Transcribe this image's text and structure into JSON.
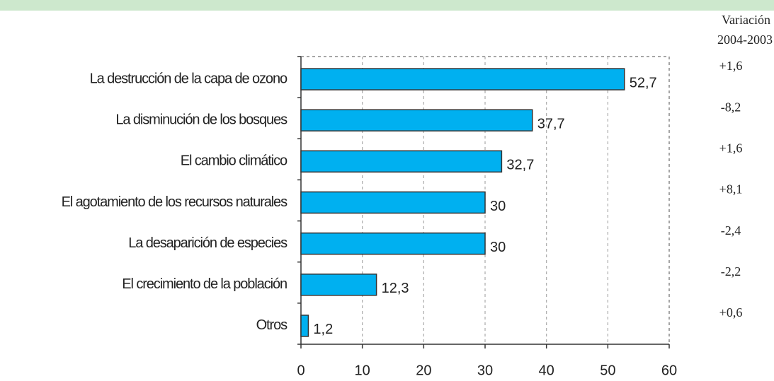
{
  "chart_data": {
    "type": "bar",
    "orientation": "horizontal",
    "categories": [
      "La destrucción de la capa de ozono",
      "La disminución de los bosques",
      "El cambio climático",
      "El agotamiento de los recursos naturales",
      "La desaparición de especies",
      "El crecimiento de la población",
      "Otros"
    ],
    "values": [
      52.7,
      37.7,
      32.7,
      30,
      30,
      12.3,
      1.2
    ],
    "value_labels": [
      "52,7",
      "37,7",
      "32,7",
      "30",
      "30",
      "12,3",
      "1,2"
    ],
    "color": "#00b0f0",
    "xlim": [
      0,
      60
    ],
    "xticks": [
      0,
      10,
      20,
      30,
      40,
      50,
      60
    ],
    "grid": true,
    "variation_header": [
      "Variación",
      "2004-2003"
    ],
    "variation": {
      "values": [
        1.6,
        -8.2,
        1.6,
        8.1,
        -2.4,
        -2.2,
        0.6
      ],
      "value_labels": [
        "+1,6",
        "-8,2",
        "+1,6",
        "+8,1",
        "-2,4",
        "-2,2",
        "+0,6"
      ]
    }
  }
}
